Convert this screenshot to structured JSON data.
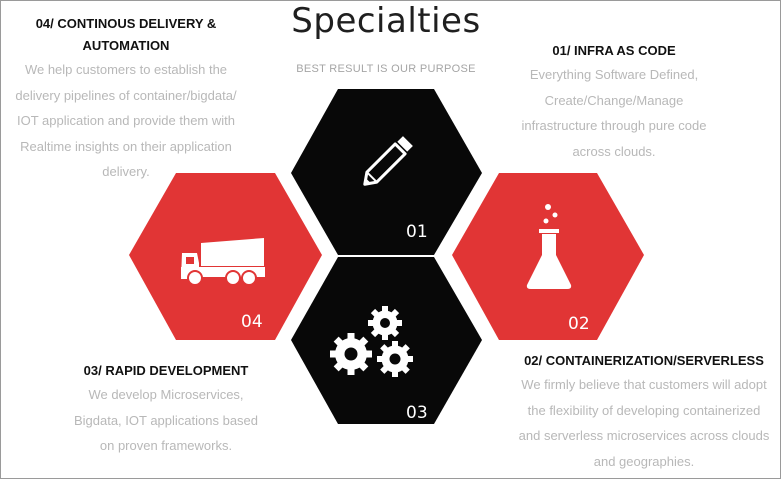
{
  "header": {
    "title": "Specialties",
    "subtitle": "BEST RESULT IS OUR PURPOSE"
  },
  "colors": {
    "red": "#e13535",
    "black": "#080808"
  },
  "hexagons": [
    {
      "number": "01",
      "color": "#080808",
      "icon": "pencil-icon"
    },
    {
      "number": "02",
      "color": "#e13535",
      "icon": "flask-icon"
    },
    {
      "number": "03",
      "color": "#080808",
      "icon": "gears-icon"
    },
    {
      "number": "04",
      "color": "#e13535",
      "icon": "dump-truck-icon"
    }
  ],
  "specialties": {
    "s01": {
      "heading": "01/ INFRA AS CODE",
      "lines": [
        "Everything  Software Defined,",
        "Create/Change/Manage",
        "infrastructure  through pure code",
        "across clouds."
      ]
    },
    "s02": {
      "heading": "02/ CONTAINERIZATION/SERVERLESS",
      "lines": [
        "We firmly believe that customers will adopt",
        "the flexibility of developing containerized",
        "and serverless microservices across clouds",
        "and geographies."
      ]
    },
    "s03": {
      "heading": "03/ RAPID DEVELOPMENT",
      "lines": [
        "We develop Microservices,",
        "Bigdata, IOT applications based",
        "on proven frameworks."
      ]
    },
    "s04": {
      "heading_lines": [
        "04/ CONTINOUS DELIVERY &",
        "AUTOMATION"
      ],
      "lines": [
        "We help customers to establish the",
        "delivery pipelines of container/bigdata/",
        "IOT application and provide them with",
        "Realtime insights on their application",
        "delivery."
      ]
    }
  }
}
